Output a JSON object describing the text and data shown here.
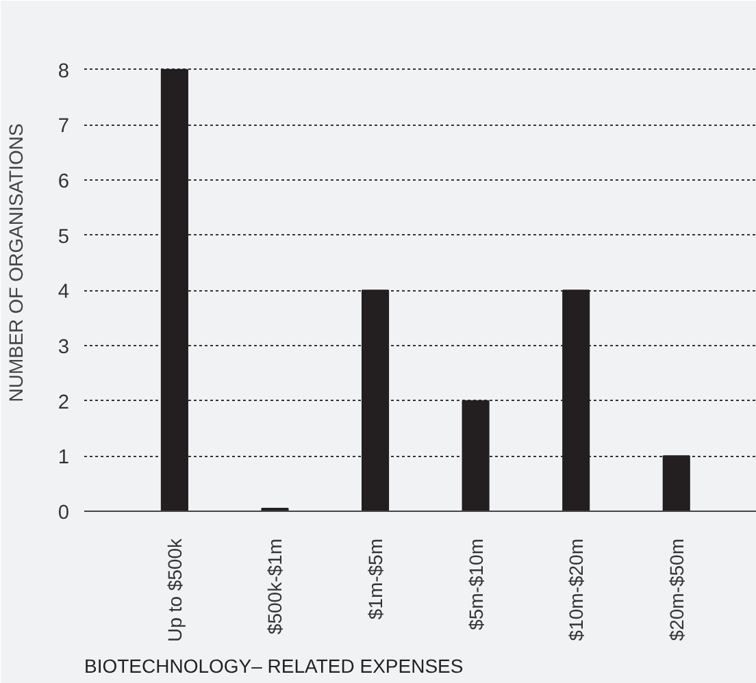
{
  "chart_data": {
    "type": "bar",
    "xlabel": "BIOTECHNOLOGY– RELATED EXPENSES",
    "ylabel": "NUMBER OF ORGANISATIONS",
    "categories": [
      "Up to $500k",
      "$500k-$1m",
      "$1m-$5m",
      "$5m-$10m",
      "$10m-$20m",
      "$20m-$50m"
    ],
    "values": [
      8,
      0.05,
      4,
      2,
      4,
      1
    ],
    "color": "#231f20",
    "ylim": [
      0,
      9
    ],
    "yticks": [
      0,
      1,
      2,
      3,
      4,
      5,
      6,
      7,
      8
    ],
    "grid": "y"
  }
}
